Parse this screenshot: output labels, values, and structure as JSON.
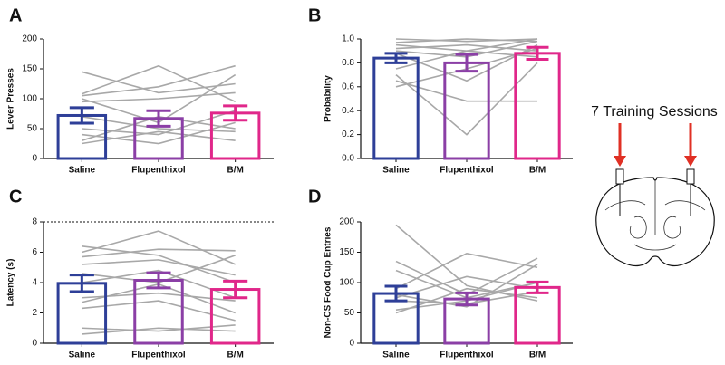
{
  "chart_data": [
    {
      "type": "bar",
      "panel": "A",
      "ylabel": "Lever Presses",
      "categories": [
        "Saline",
        "Flupenthixol",
        "B/M"
      ],
      "values": [
        72,
        67,
        76
      ],
      "errors": [
        13,
        13,
        12
      ],
      "colors": [
        "#2e3f98",
        "#8b3fa6",
        "#e0278a"
      ],
      "ylim": [
        0,
        200
      ],
      "yticks": [
        0,
        50,
        100,
        150,
        200
      ],
      "subjects": [
        [
          145,
          110,
          125
        ],
        [
          108,
          155,
          95
        ],
        [
          105,
          120,
          155
        ],
        [
          100,
          60,
          140
        ],
        [
          95,
          100,
          110
        ],
        [
          70,
          50,
          45
        ],
        [
          50,
          40,
          80
        ],
        [
          40,
          25,
          60
        ],
        [
          30,
          70,
          50
        ],
        [
          25,
          45,
          30
        ]
      ],
      "subject_color": "#a8a8a8"
    },
    {
      "type": "bar",
      "panel": "B",
      "ylabel": "Probability",
      "categories": [
        "Saline",
        "Flupenthixol",
        "B/M"
      ],
      "values": [
        0.84,
        0.8,
        0.88
      ],
      "errors": [
        0.04,
        0.07,
        0.05
      ],
      "colors": [
        "#2e3f98",
        "#8b3fa6",
        "#e0278a"
      ],
      "ylim": [
        0,
        1
      ],
      "yticks": [
        {
          "value": 0,
          "label": "0.0"
        },
        0.2,
        0.4,
        0.6,
        0.8,
        {
          "value": 1,
          "label": "1.0"
        }
      ],
      "subjects": [
        [
          1.0,
          0.98,
          1.0
        ],
        [
          0.97,
          1.0,
          0.98
        ],
        [
          0.95,
          0.9,
          1.0
        ],
        [
          0.92,
          0.95,
          0.9
        ],
        [
          0.9,
          0.85,
          0.98
        ],
        [
          0.88,
          0.65,
          0.95
        ],
        [
          0.75,
          0.9,
          0.85
        ],
        [
          0.7,
          0.2,
          0.8
        ],
        [
          0.65,
          0.48,
          0.48
        ],
        [
          0.6,
          0.75,
          0.92
        ]
      ],
      "subject_color": "#a8a8a8"
    },
    {
      "type": "bar",
      "panel": "C",
      "ylabel": "Latency (s)",
      "categories": [
        "Saline",
        "Flupenthixol",
        "B/M"
      ],
      "values": [
        3.95,
        4.15,
        3.55
      ],
      "errors": [
        0.55,
        0.5,
        0.55
      ],
      "colors": [
        "#2e3f98",
        "#8b3fa6",
        "#e0278a"
      ],
      "ylim": [
        0,
        8
      ],
      "yticks": [
        0,
        2,
        4,
        6,
        8
      ],
      "reference_line": 8,
      "subjects": [
        [
          6.4,
          5.8,
          4.0
        ],
        [
          6.0,
          7.4,
          5.2
        ],
        [
          5.7,
          6.2,
          6.1
        ],
        [
          5.2,
          5.5,
          4.5
        ],
        [
          4.6,
          4.0,
          5.8
        ],
        [
          4.0,
          4.8,
          3.0
        ],
        [
          3.0,
          3.3,
          2.8
        ],
        [
          2.7,
          3.9,
          2.0
        ],
        [
          2.3,
          2.8,
          1.5
        ],
        [
          1.0,
          0.8,
          1.2
        ],
        [
          0.6,
          1.0,
          0.8
        ]
      ],
      "subject_color": "#a8a8a8"
    },
    {
      "type": "bar",
      "panel": "D",
      "ylabel": "Non-CS Food Cup Entries",
      "categories": [
        "Saline",
        "Flupenthixol",
        "B/M"
      ],
      "values": [
        82,
        73,
        92
      ],
      "errors": [
        12,
        10,
        9
      ],
      "colors": [
        "#2e3f98",
        "#8b3fa6",
        "#e0278a"
      ],
      "ylim": [
        0,
        200
      ],
      "yticks": [
        0,
        50,
        100,
        150,
        200
      ],
      "subjects": [
        [
          195,
          95,
          70
        ],
        [
          135,
          80,
          140
        ],
        [
          120,
          75,
          100
        ],
        [
          90,
          148,
          125
        ],
        [
          80,
          60,
          130
        ],
        [
          75,
          110,
          90
        ],
        [
          70,
          65,
          85
        ],
        [
          55,
          70,
          100
        ],
        [
          50,
          90,
          75
        ]
      ],
      "subject_color": "#a8a8a8"
    }
  ],
  "diagram": {
    "label": "7 Training Sessions"
  }
}
